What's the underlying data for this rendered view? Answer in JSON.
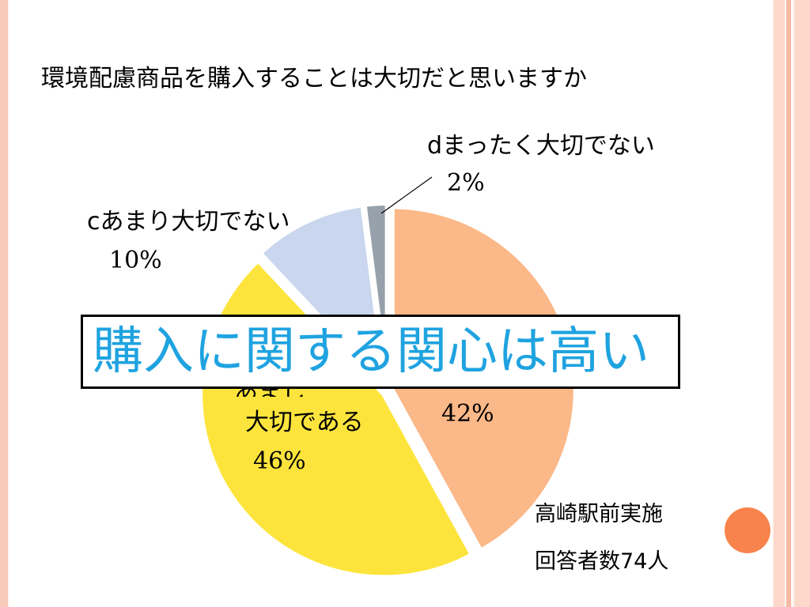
{
  "title": "環境配慮商品を購入することは大切だと思いますか",
  "chart_data": {
    "type": "pie",
    "title": "環境配慮商品を購入することは大切だと思いますか",
    "slices": [
      {
        "label": "a大切である",
        "value": 42,
        "pct_label": "42%",
        "color": "#fbb888"
      },
      {
        "label": "b少し大切である",
        "value": 46,
        "pct_label": "46%",
        "color": "#fde43c"
      },
      {
        "label": "cあまり大切でない",
        "value": 10,
        "pct_label": "10%",
        "color": "#c9d6ee"
      },
      {
        "label": "dまったく大切でない",
        "value": 2,
        "pct_label": "2%",
        "color": "#97a1ab"
      }
    ]
  },
  "labels": {
    "d": "dまったく大切でない",
    "d_pct": "2%",
    "c": "cあまり大切でない",
    "c_pct": "10%",
    "b_partial": "あまし",
    "b": "大切である",
    "b_pct": "46%",
    "a_pct": "42%"
  },
  "callout": "購入に関する関心は高い",
  "notes": {
    "location": "高崎駅前実施",
    "respondents": "回答者数74人"
  },
  "colors": {
    "callout_text": "#1fa3e0",
    "accent_dot": "#f9834c",
    "frame": "#f7c9b7"
  }
}
